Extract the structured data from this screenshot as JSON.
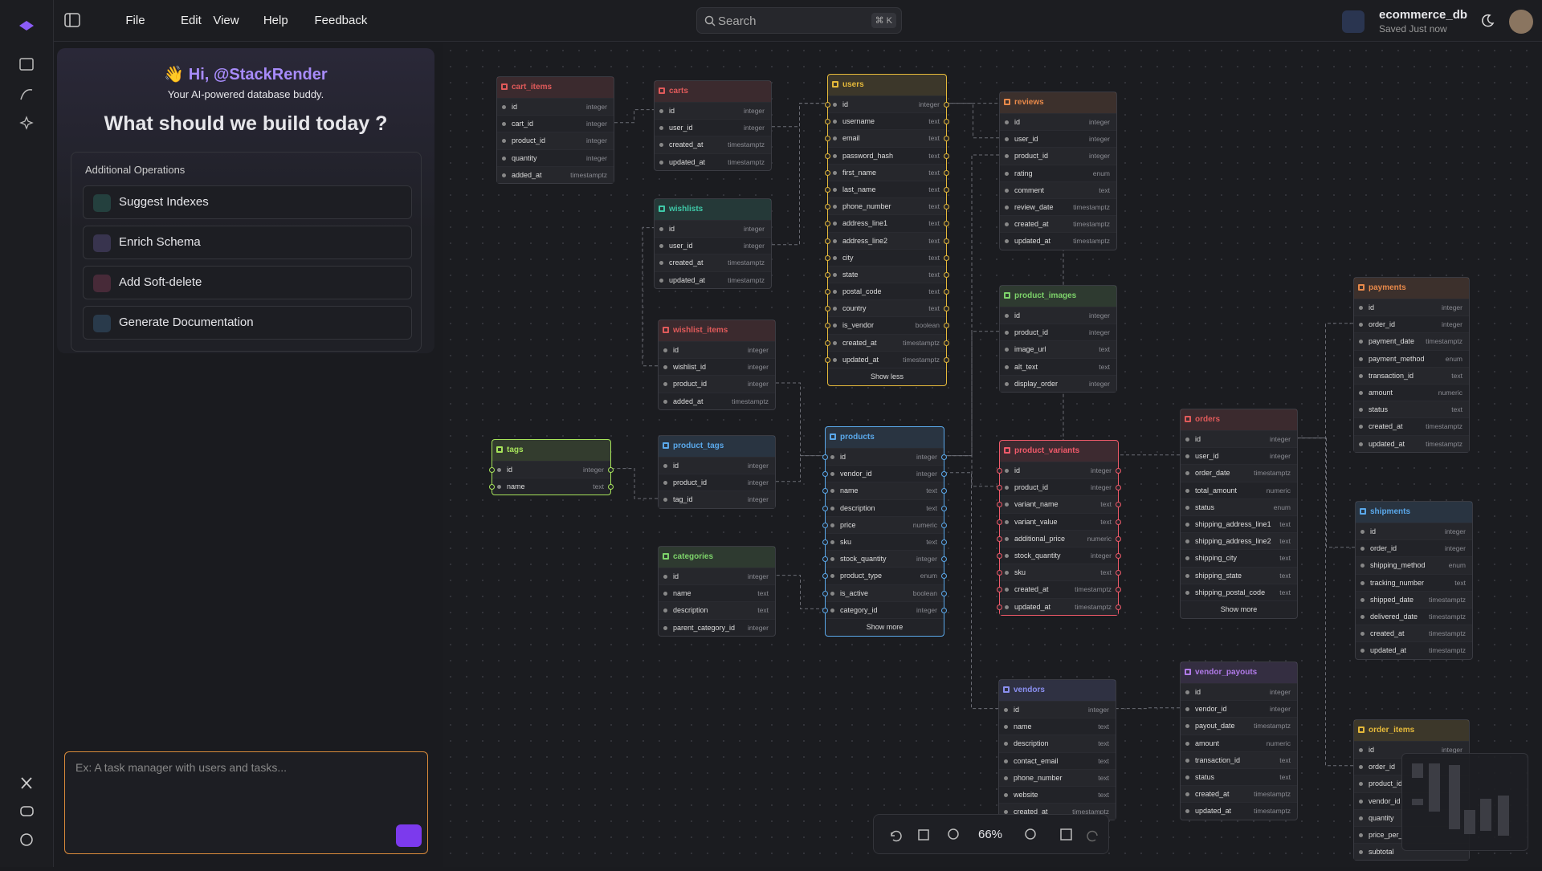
{
  "menu": [
    "File",
    "Edit",
    "View",
    "Help",
    "Feedback"
  ],
  "search": {
    "placeholder": "Search",
    "shortcut": "⌘ K"
  },
  "project": {
    "name": "ecommerce_db",
    "status": "Saved Just now"
  },
  "panel": {
    "greeting": "👋 Hi, @StackRender",
    "tagline": "Your AI-powered database buddy.",
    "heading": "What should we build today ?",
    "operations_title": "Additional Operations",
    "operations": [
      "Suggest Indexes",
      "Enrich Schema",
      "Add Soft-delete",
      "Generate Documentation"
    ],
    "prompt_placeholder": "Ex: A task manager with users and tasks..."
  },
  "zoom": "66%",
  "tables": [
    {
      "name": "cart_items",
      "color": "#e05a5a",
      "columns": [
        {
          "name": "id",
          "type": "integer"
        },
        {
          "name": "cart_id",
          "type": "integer"
        },
        {
          "name": "product_id",
          "type": "integer"
        },
        {
          "name": "quantity",
          "type": "integer"
        },
        {
          "name": "added_at",
          "type": "timestamptz"
        }
      ]
    },
    {
      "name": "carts",
      "color": "#e05a5a",
      "columns": [
        {
          "name": "id",
          "type": "integer"
        },
        {
          "name": "user_id",
          "type": "integer"
        },
        {
          "name": "created_at",
          "type": "timestamptz"
        },
        {
          "name": "updated_at",
          "type": "timestamptz"
        }
      ]
    },
    {
      "name": "users",
      "color": "#e5b93a",
      "highlight": true,
      "footer": "Show less",
      "columns": [
        {
          "name": "id",
          "type": "integer"
        },
        {
          "name": "username",
          "type": "text"
        },
        {
          "name": "email",
          "type": "text"
        },
        {
          "name": "password_hash",
          "type": "text"
        },
        {
          "name": "first_name",
          "type": "text"
        },
        {
          "name": "last_name",
          "type": "text"
        },
        {
          "name": "phone_number",
          "type": "text"
        },
        {
          "name": "address_line1",
          "type": "text"
        },
        {
          "name": "address_line2",
          "type": "text"
        },
        {
          "name": "city",
          "type": "text"
        },
        {
          "name": "state",
          "type": "text"
        },
        {
          "name": "postal_code",
          "type": "text"
        },
        {
          "name": "country",
          "type": "text"
        },
        {
          "name": "is_vendor",
          "type": "boolean"
        },
        {
          "name": "created_at",
          "type": "timestamptz"
        },
        {
          "name": "updated_at",
          "type": "timestamptz"
        }
      ]
    },
    {
      "name": "reviews",
      "color": "#e8894a",
      "columns": [
        {
          "name": "id",
          "type": "integer"
        },
        {
          "name": "user_id",
          "type": "integer"
        },
        {
          "name": "product_id",
          "type": "integer"
        },
        {
          "name": "rating",
          "type": "enum"
        },
        {
          "name": "comment",
          "type": "text"
        },
        {
          "name": "review_date",
          "type": "timestamptz"
        },
        {
          "name": "created_at",
          "type": "timestamptz"
        },
        {
          "name": "updated_at",
          "type": "timestamptz"
        }
      ]
    },
    {
      "name": "wishlists",
      "color": "#3fc9a8",
      "columns": [
        {
          "name": "id",
          "type": "integer"
        },
        {
          "name": "user_id",
          "type": "integer"
        },
        {
          "name": "created_at",
          "type": "timestamptz"
        },
        {
          "name": "updated_at",
          "type": "timestamptz"
        }
      ]
    },
    {
      "name": "wishlist_items",
      "color": "#e05a5a",
      "columns": [
        {
          "name": "id",
          "type": "integer"
        },
        {
          "name": "wishlist_id",
          "type": "integer"
        },
        {
          "name": "product_id",
          "type": "integer"
        },
        {
          "name": "added_at",
          "type": "timestamptz"
        }
      ]
    },
    {
      "name": "product_images",
      "color": "#7dd36a",
      "columns": [
        {
          "name": "id",
          "type": "integer"
        },
        {
          "name": "product_id",
          "type": "integer"
        },
        {
          "name": "image_url",
          "type": "text"
        },
        {
          "name": "alt_text",
          "type": "text"
        },
        {
          "name": "display_order",
          "type": "integer"
        }
      ]
    },
    {
      "name": "payments",
      "color": "#e8894a",
      "columns": [
        {
          "name": "id",
          "type": "integer"
        },
        {
          "name": "order_id",
          "type": "integer"
        },
        {
          "name": "payment_date",
          "type": "timestamptz"
        },
        {
          "name": "payment_method",
          "type": "enum"
        },
        {
          "name": "transaction_id",
          "type": "text"
        },
        {
          "name": "amount",
          "type": "numeric"
        },
        {
          "name": "status",
          "type": "text"
        },
        {
          "name": "created_at",
          "type": "timestamptz"
        },
        {
          "name": "updated_at",
          "type": "timestamptz"
        }
      ]
    },
    {
      "name": "tags",
      "color": "#a6e35a",
      "highlight": true,
      "columns": [
        {
          "name": "id",
          "type": "integer"
        },
        {
          "name": "name",
          "type": "text"
        }
      ]
    },
    {
      "name": "product_tags",
      "color": "#5aa8ea",
      "columns": [
        {
          "name": "id",
          "type": "integer"
        },
        {
          "name": "product_id",
          "type": "integer"
        },
        {
          "name": "tag_id",
          "type": "integer"
        }
      ]
    },
    {
      "name": "products",
      "color": "#5aa8ea",
      "highlight": true,
      "footer": "Show more",
      "columns": [
        {
          "name": "id",
          "type": "integer"
        },
        {
          "name": "vendor_id",
          "type": "integer"
        },
        {
          "name": "name",
          "type": "text"
        },
        {
          "name": "description",
          "type": "text"
        },
        {
          "name": "price",
          "type": "numeric"
        },
        {
          "name": "sku",
          "type": "text"
        },
        {
          "name": "stock_quantity",
          "type": "integer"
        },
        {
          "name": "product_type",
          "type": "enum"
        },
        {
          "name": "is_active",
          "type": "boolean"
        },
        {
          "name": "category_id",
          "type": "integer"
        }
      ]
    },
    {
      "name": "product_variants",
      "color": "#f05a6a",
      "highlight": true,
      "columns": [
        {
          "name": "id",
          "type": "integer"
        },
        {
          "name": "product_id",
          "type": "integer"
        },
        {
          "name": "variant_name",
          "type": "text"
        },
        {
          "name": "variant_value",
          "type": "text"
        },
        {
          "name": "additional_price",
          "type": "numeric"
        },
        {
          "name": "stock_quantity",
          "type": "integer"
        },
        {
          "name": "sku",
          "type": "text"
        },
        {
          "name": "created_at",
          "type": "timestamptz"
        },
        {
          "name": "updated_at",
          "type": "timestamptz"
        }
      ]
    },
    {
      "name": "orders",
      "color": "#e05a5a",
      "footer": "Show more",
      "columns": [
        {
          "name": "id",
          "type": "integer"
        },
        {
          "name": "user_id",
          "type": "integer"
        },
        {
          "name": "order_date",
          "type": "timestamptz"
        },
        {
          "name": "total_amount",
          "type": "numeric"
        },
        {
          "name": "status",
          "type": "enum"
        },
        {
          "name": "shipping_address_line1",
          "type": "text"
        },
        {
          "name": "shipping_address_line2",
          "type": "text"
        },
        {
          "name": "shipping_city",
          "type": "text"
        },
        {
          "name": "shipping_state",
          "type": "text"
        },
        {
          "name": "shipping_postal_code",
          "type": "text"
        }
      ]
    },
    {
      "name": "shipments",
      "color": "#5aa8ea",
      "columns": [
        {
          "name": "id",
          "type": "integer"
        },
        {
          "name": "order_id",
          "type": "integer"
        },
        {
          "name": "shipping_method",
          "type": "enum"
        },
        {
          "name": "tracking_number",
          "type": "text"
        },
        {
          "name": "shipped_date",
          "type": "timestamptz"
        },
        {
          "name": "delivered_date",
          "type": "timestamptz"
        },
        {
          "name": "created_at",
          "type": "timestamptz"
        },
        {
          "name": "updated_at",
          "type": "timestamptz"
        }
      ]
    },
    {
      "name": "categories",
      "color": "#7dd36a",
      "columns": [
        {
          "name": "id",
          "type": "integer"
        },
        {
          "name": "name",
          "type": "text"
        },
        {
          "name": "description",
          "type": "text"
        },
        {
          "name": "parent_category_id",
          "type": "integer"
        }
      ]
    },
    {
      "name": "vendors",
      "color": "#8a8ff0",
      "columns": [
        {
          "name": "id",
          "type": "integer"
        },
        {
          "name": "name",
          "type": "text"
        },
        {
          "name": "description",
          "type": "text"
        },
        {
          "name": "contact_email",
          "type": "text"
        },
        {
          "name": "phone_number",
          "type": "text"
        },
        {
          "name": "website",
          "type": "text"
        },
        {
          "name": "created_at",
          "type": "timestamptz"
        }
      ]
    },
    {
      "name": "vendor_payouts",
      "color": "#b07ae8",
      "columns": [
        {
          "name": "id",
          "type": "integer"
        },
        {
          "name": "vendor_id",
          "type": "integer"
        },
        {
          "name": "payout_date",
          "type": "timestamptz"
        },
        {
          "name": "amount",
          "type": "numeric"
        },
        {
          "name": "transaction_id",
          "type": "text"
        },
        {
          "name": "status",
          "type": "text"
        },
        {
          "name": "created_at",
          "type": "timestamptz"
        },
        {
          "name": "updated_at",
          "type": "timestamptz"
        }
      ]
    },
    {
      "name": "order_items",
      "color": "#e5b93a",
      "columns": [
        {
          "name": "id",
          "type": "integer"
        },
        {
          "name": "order_id"
        },
        {
          "name": "product_id"
        },
        {
          "name": "vendor_id"
        },
        {
          "name": "quantity"
        },
        {
          "name": "price_per_"
        },
        {
          "name": "subtotal"
        }
      ]
    }
  ]
}
